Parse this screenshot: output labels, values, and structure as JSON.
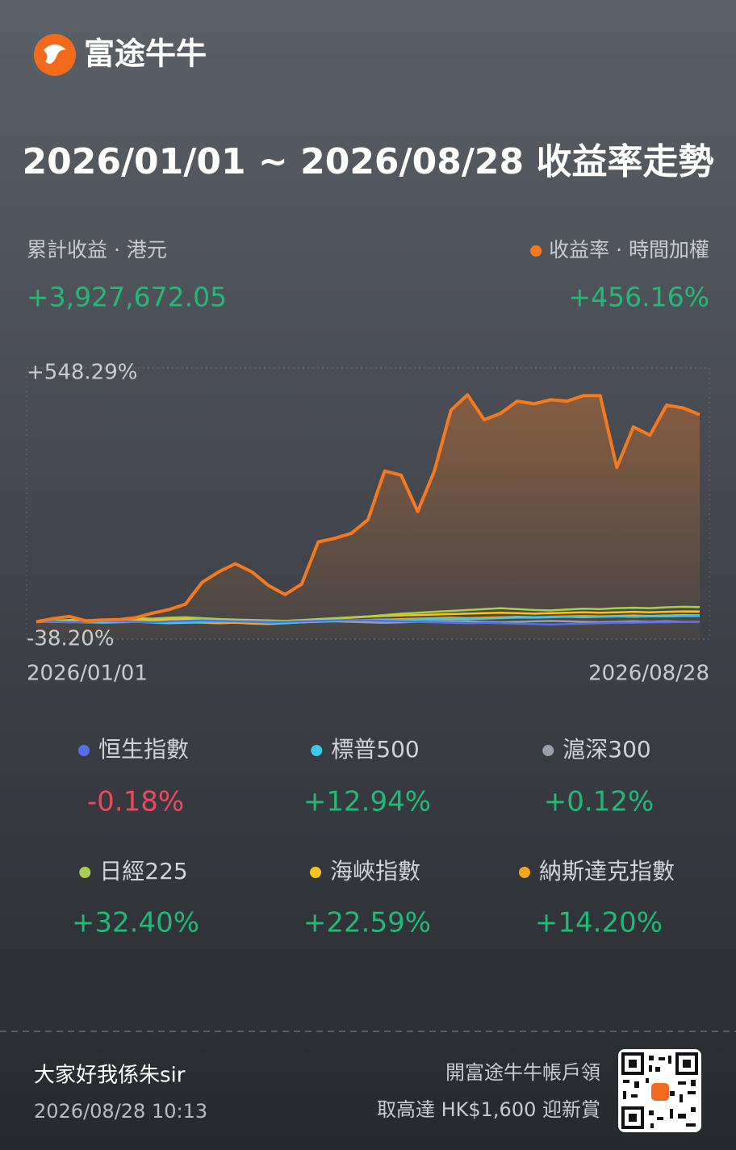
{
  "header": {
    "brand": "富途牛牛"
  },
  "title": "2026/01/01 ~ 2026/08/28 收益率走勢",
  "summary": {
    "profit_label": "累計收益 · 港元",
    "profit": "+3,927,672.05"
  },
  "chart_data": {
    "type": "line",
    "categories": [
      "2026/01/01",
      null,
      null,
      null,
      null,
      null,
      null,
      null,
      null,
      null,
      null,
      null,
      null,
      null,
      null,
      null,
      null,
      null,
      null,
      null,
      null,
      null,
      null,
      null,
      null,
      null,
      null,
      null,
      null,
      null,
      null,
      null,
      null,
      null,
      null,
      null,
      null,
      null,
      null,
      null,
      "2026/08/28"
    ],
    "ylim": [
      -38.2,
      548.29
    ],
    "yticks": [
      {
        "value": 548.29,
        "label": "+548.29%"
      },
      {
        "value": -38.2,
        "label": "-38.20%"
      }
    ],
    "series": [
      {
        "name": "收益率 · 時間加權",
        "color": "#f57a1f",
        "values": [
          0,
          7,
          12,
          2,
          4,
          5,
          9,
          19,
          27,
          39,
          87,
          110,
          128,
          110,
          80,
          60,
          83,
          176,
          184,
          195,
          225,
          332,
          323,
          243,
          332,
          466,
          500,
          445,
          459,
          486,
          480,
          489,
          486,
          498,
          498,
          340,
          429,
          411,
          477,
          471,
          456.16
        ],
        "value_labels": [
          null,
          null,
          null,
          null,
          null,
          null,
          null,
          null,
          null,
          null,
          null,
          null,
          null,
          null,
          null,
          null,
          null,
          null,
          null,
          null,
          null,
          null,
          null,
          null,
          null,
          null,
          null,
          null,
          null,
          null,
          null,
          null,
          null,
          null,
          null,
          null,
          null,
          null,
          null,
          null,
          "+456.16%"
        ]
      },
      {
        "name": "恒生指數",
        "color": "#5470e8",
        "values": [
          0,
          1,
          -1,
          0,
          2,
          1,
          0,
          -1,
          1,
          2,
          3,
          2,
          1,
          0,
          -1,
          0,
          1,
          2,
          3,
          4,
          3,
          2,
          1,
          0,
          -1,
          -2,
          -3,
          -2,
          -3,
          -4,
          -5,
          -6,
          -5,
          -4,
          -3,
          -2,
          -2,
          -1,
          -1,
          0,
          -0.18
        ],
        "value_labels": [
          null,
          null,
          null,
          null,
          null,
          null,
          null,
          null,
          null,
          null,
          null,
          null,
          null,
          null,
          null,
          null,
          null,
          null,
          null,
          null,
          null,
          null,
          null,
          null,
          null,
          null,
          null,
          null,
          null,
          null,
          null,
          null,
          null,
          null,
          null,
          null,
          null,
          null,
          null,
          null,
          "-0.18%"
        ]
      },
      {
        "name": "標普500",
        "color": "#3cc8e8",
        "values": [
          0,
          1,
          0,
          -1,
          -2,
          -1,
          0,
          -2,
          -3,
          -2,
          -1,
          0,
          1,
          0,
          -2,
          -3,
          -1,
          1,
          2,
          3,
          4,
          5,
          4,
          5,
          6,
          7,
          6,
          7,
          8,
          9,
          9,
          10,
          11,
          10,
          11,
          12,
          11,
          12,
          12,
          13,
          12.94
        ],
        "value_labels": [
          null,
          null,
          null,
          null,
          null,
          null,
          null,
          null,
          null,
          null,
          null,
          null,
          null,
          null,
          null,
          null,
          null,
          null,
          null,
          null,
          null,
          null,
          null,
          null,
          null,
          null,
          null,
          null,
          null,
          null,
          null,
          null,
          null,
          null,
          null,
          null,
          null,
          null,
          null,
          null,
          "+12.94%"
        ]
      },
      {
        "name": "滬深300",
        "color": "#9aa0aa",
        "values": [
          0,
          0,
          -1,
          0,
          1,
          2,
          1,
          0,
          -1,
          -2,
          -1,
          0,
          1,
          2,
          1,
          0,
          -1,
          0,
          1,
          0,
          -1,
          -2,
          -1,
          0,
          1,
          2,
          1,
          0,
          -1,
          0,
          1,
          2,
          1,
          0,
          -1,
          0,
          1,
          0,
          1,
          0,
          0.12
        ],
        "value_labels": [
          null,
          null,
          null,
          null,
          null,
          null,
          null,
          null,
          null,
          null,
          null,
          null,
          null,
          null,
          null,
          null,
          null,
          null,
          null,
          null,
          null,
          null,
          null,
          null,
          null,
          null,
          null,
          null,
          null,
          null,
          null,
          null,
          null,
          null,
          null,
          null,
          null,
          null,
          null,
          null,
          "+0.12%"
        ]
      },
      {
        "name": "日經225",
        "color": "#a6d04e",
        "values": [
          0,
          2,
          4,
          3,
          5,
          6,
          8,
          7,
          9,
          10,
          8,
          6,
          5,
          4,
          3,
          2,
          4,
          6,
          8,
          10,
          12,
          15,
          18,
          20,
          22,
          24,
          26,
          28,
          30,
          28,
          26,
          25,
          27,
          29,
          28,
          30,
          31,
          30,
          32,
          33,
          32.4
        ],
        "value_labels": [
          null,
          null,
          null,
          null,
          null,
          null,
          null,
          null,
          null,
          null,
          null,
          null,
          null,
          null,
          null,
          null,
          null,
          null,
          null,
          null,
          null,
          null,
          null,
          null,
          null,
          null,
          null,
          null,
          null,
          null,
          null,
          null,
          null,
          null,
          null,
          null,
          null,
          null,
          null,
          null,
          "+32.40%"
        ]
      },
      {
        "name": "海峽指數",
        "color": "#f5c518",
        "values": [
          0,
          1,
          2,
          1,
          2,
          3,
          4,
          3,
          5,
          6,
          5,
          4,
          3,
          2,
          1,
          2,
          3,
          5,
          7,
          9,
          11,
          13,
          14,
          15,
          16,
          17,
          18,
          19,
          20,
          19,
          18,
          19,
          20,
          21,
          20,
          21,
          22,
          21,
          22,
          23,
          22.59
        ],
        "value_labels": [
          null,
          null,
          null,
          null,
          null,
          null,
          null,
          null,
          null,
          null,
          null,
          null,
          null,
          null,
          null,
          null,
          null,
          null,
          null,
          null,
          null,
          null,
          null,
          null,
          null,
          null,
          null,
          null,
          null,
          null,
          null,
          null,
          null,
          null,
          null,
          null,
          null,
          null,
          null,
          null,
          "+22.59%"
        ]
      },
      {
        "name": "納斯達克指數",
        "color": "#f0a81c",
        "values": [
          0,
          1,
          0,
          -1,
          0,
          1,
          2,
          1,
          0,
          -1,
          -2,
          -3,
          -2,
          -4,
          -5,
          -3,
          -1,
          0,
          2,
          3,
          4,
          5,
          6,
          7,
          8,
          9,
          8,
          9,
          10,
          11,
          10,
          11,
          12,
          13,
          12,
          13,
          14,
          13,
          14,
          15,
          14.2
        ],
        "value_labels": [
          null,
          null,
          null,
          null,
          null,
          null,
          null,
          null,
          null,
          null,
          null,
          null,
          null,
          null,
          null,
          null,
          null,
          null,
          null,
          null,
          null,
          null,
          null,
          null,
          null,
          null,
          null,
          null,
          null,
          null,
          null,
          null,
          null,
          null,
          null,
          null,
          null,
          null,
          null,
          null,
          "+14.20%"
        ]
      }
    ]
  },
  "footer": {
    "user": "大家好我係朱sir",
    "timestamp": "2026/08/28 10:13",
    "promo": [
      "開富途牛牛帳戶領",
      "取高達 HK$1,600 迎新賞"
    ]
  }
}
